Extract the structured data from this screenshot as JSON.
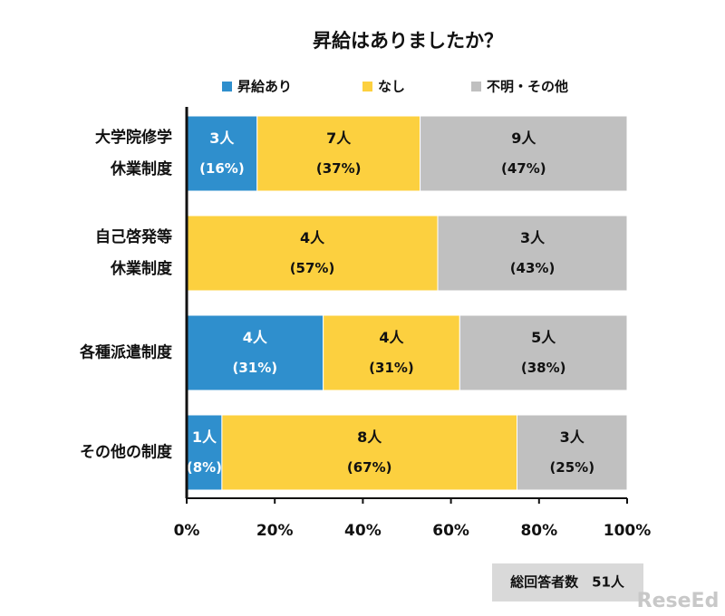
{
  "chart_data": {
    "type": "stacked-bar-horizontal",
    "title": "昇給はありましたか？",
    "categories": [
      [
        "大学院修学",
        "休業制度"
      ],
      [
        "自己啓発等",
        "休業制度"
      ],
      [
        "各種派遣制度"
      ],
      [
        "その他の制度"
      ]
    ],
    "series": [
      {
        "name": "昇給あり",
        "color": "#2f8fcd",
        "label_color": "#ffffff",
        "values": [
          16,
          0,
          31,
          8
        ],
        "value_labels": [
          "(16%)",
          null,
          "(31%)",
          "(8%)"
        ],
        "count_labels": [
          "3人",
          null,
          "4人",
          "1人"
        ]
      },
      {
        "name": "なし",
        "color": "#fcd03f",
        "label_color": "#111111",
        "values": [
          37,
          57,
          31,
          67
        ],
        "value_labels": [
          "(37%)",
          "(57%)",
          "(31%)",
          "(67%)"
        ],
        "count_labels": [
          "7人",
          "4人",
          "4人",
          "8人"
        ]
      },
      {
        "name": "不明・その他",
        "color": "#c0c0c0",
        "label_color": "#111111",
        "values": [
          47,
          43,
          38,
          25
        ],
        "value_labels": [
          "(47%)",
          "(43%)",
          "(38%)",
          "(25%)"
        ],
        "count_labels": [
          "9人",
          "3人",
          "5人",
          "3人"
        ]
      }
    ],
    "xlim": [
      0,
      100
    ],
    "xticks": [
      {
        "value": 0,
        "label": "0%"
      },
      {
        "value": 20,
        "label": "20%"
      },
      {
        "value": 40,
        "label": "40%"
      },
      {
        "value": 60,
        "label": "60%"
      },
      {
        "value": 80,
        "label": "80%"
      },
      {
        "value": 100,
        "label": "100%"
      }
    ],
    "annotation": "総回答者数　51人",
    "watermark": "ReseEd"
  }
}
